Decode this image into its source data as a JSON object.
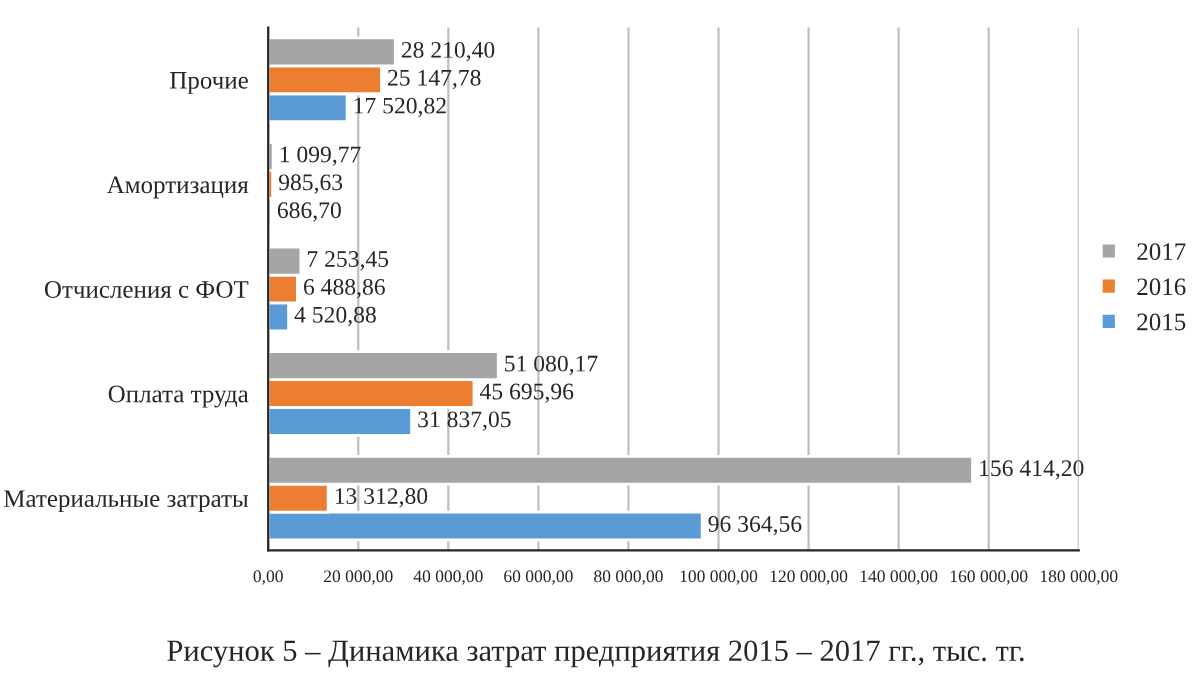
{
  "chart_data": {
    "type": "bar",
    "orientation": "horizontal",
    "categories": [
      "Прочие",
      "Амортизация",
      "Отчисления с ФОТ",
      "Оплата труда",
      "Материальные затраты"
    ],
    "series": [
      {
        "name": "2015",
        "color": "#5b9bd5",
        "values": [
          17520.82,
          686.7,
          4520.88,
          31837.05,
          96364.56
        ],
        "value_labels": [
          "17 520,82",
          "686,70",
          "4 520,88",
          "31 837,05",
          "96 364,56"
        ]
      },
      {
        "name": "2016",
        "color": "#ed7d31",
        "values": [
          25147.78,
          985.63,
          6488.86,
          45695.96,
          13312.8
        ],
        "value_labels": [
          "25 147,78",
          "985,63",
          "6 488,86",
          "45 695,96",
          "13 312,80"
        ]
      },
      {
        "name": "2017",
        "color": "#a5a5a5",
        "values": [
          28210.4,
          1099.77,
          7253.45,
          51080.17,
          156414.2
        ],
        "value_labels": [
          "28 210,40",
          "1 099,77",
          "7 253,45",
          "51 080,17",
          "156 414,20"
        ]
      }
    ],
    "xlim": [
      0,
      180000
    ],
    "xticks": [
      {
        "value": 0,
        "label": "0,00"
      },
      {
        "value": 20000,
        "label": "20 000,00"
      },
      {
        "value": 40000,
        "label": "40 000,00"
      },
      {
        "value": 60000,
        "label": "60 000,00"
      },
      {
        "value": 80000,
        "label": "80 000,00"
      },
      {
        "value": 100000,
        "label": "100 000,00"
      },
      {
        "value": 120000,
        "label": "120 000,00"
      },
      {
        "value": 140000,
        "label": "140 000,00"
      },
      {
        "value": 160000,
        "label": "160 000,00"
      },
      {
        "value": 180000,
        "label": "180 000,00"
      }
    ],
    "grid": "x",
    "legend": "right",
    "annotations": [
      "Рисунок 5 – Динамика затрат предприятия 2015 – 2017 гг., тыс. тг."
    ]
  }
}
